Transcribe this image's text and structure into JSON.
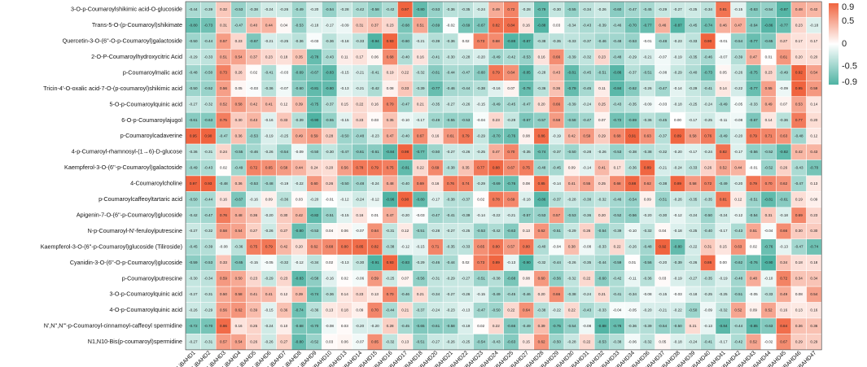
{
  "chart_data": {
    "type": "heatmap",
    "title": "",
    "xlabel": "",
    "ylabel": "",
    "colormap": {
      "low": "#4fb3a3",
      "mid": "#ffffff",
      "high": "#f0643f"
    },
    "zlim": [
      -0.9,
      0.9
    ],
    "colorbar_ticks": [
      "0.9",
      "0.5",
      "0",
      "-0.5",
      "-0.9"
    ],
    "columns": [
      "LjBAHD1",
      "LjBAHD2",
      "LjBAHD3",
      "LjBAHD4",
      "LjBAHD5",
      "LjBAHD6",
      "LjBAHD7",
      "LjBAHD8",
      "LjBAHD9",
      "LjBAHD10",
      "LjBAHD13",
      "LjBAHD14",
      "LjBAHD15",
      "LjBAHD16",
      "LjBAHD17",
      "LjBAHD18",
      "LjBAHD20",
      "LjBAHD21",
      "LjBAHD22",
      "LjBAHD23",
      "LjBAHD24",
      "LjBAHD25",
      "LjBAHD27",
      "LjBAHD28",
      "LjBAHD29",
      "LjBAHD30",
      "LjBAHD31",
      "LjBAHD32",
      "LjBAHD33",
      "LjBAHD34",
      "LjBAHD36",
      "LjBAHD37",
      "LjBAHD38",
      "LjBAHD39",
      "LjBAHD40",
      "LjBAHD41",
      "LjBAHD42",
      "LjBAHD43",
      "LjBAHD44",
      "LjBAHD45",
      "LjBAHD46",
      "LjBAHD47"
    ],
    "rows": [
      {
        "name": "3-O-p-Coumaroylshikimic acid-O-glucoside",
        "values": [
          -0.44,
          -0.39,
          0.32,
          -0.53,
          -0.38,
          -0.24,
          -0.26,
          -0.49,
          -0.2,
          -0.54,
          -0.28,
          -0.42,
          -0.58,
          -0.42,
          0.97,
          -0.8,
          -0.53,
          -0.36,
          -0.35,
          -0.24,
          0.49,
          0.72,
          -0.28,
          -0.79,
          -0.3,
          -0.55,
          -0.34,
          -0.26,
          -0.6,
          -0.47,
          -0.45,
          -0.29,
          -0.27,
          -0.25,
          -0.34,
          0.81,
          -0.15,
          -0.63,
          -0.54,
          -0.87,
          0.48,
          0.42
        ]
      },
      {
        "name": "Trans-5-O-(p-Coumaroyl)shikimate",
        "values": [
          -0.8,
          -0.73,
          0.31,
          -0.47,
          0.4,
          0.44,
          0.04,
          -0.53,
          -0.18,
          -0.17,
          -0.09,
          0.31,
          0.37,
          0.23,
          -0.68,
          0.51,
          -0.69,
          -0.02,
          -0.69,
          -0.67,
          0.82,
          0.84,
          0.16,
          -0.88,
          0.03,
          -0.34,
          -0.43,
          -0.39,
          -0.46,
          -0.7,
          -0.77,
          0.46,
          -0.87,
          -0.45,
          -0.74,
          0.46,
          0.47,
          -0.64,
          -0.86,
          -0.77,
          0.23,
          -0.18
        ]
      },
      {
        "name": "Quercetin-3-O-(6''-O-p-Coumaroyl)galactoside",
        "values": [
          -0.5,
          -0.44,
          0.57,
          0.23,
          -0.67,
          -0.21,
          -0.25,
          -0.36,
          -0.03,
          -0.36,
          -0.18,
          -0.33,
          -0.94,
          0.93,
          -0.6,
          -0.21,
          -0.39,
          -0.36,
          0.02,
          0.73,
          0.68,
          -0.88,
          -0.87,
          -0.38,
          -0.35,
          -0.33,
          -0.37,
          -0.46,
          -0.48,
          -0.53,
          -0.01,
          -0.48,
          -0.23,
          -0.33,
          0.9,
          -0.01,
          -0.54,
          -0.77,
          -0.65,
          0.27,
          0.17,
          0.17
        ]
      },
      {
        "name": "2-O-P-Coumaroylhydroxycitric Acid",
        "values": [
          -0.29,
          -0.33,
          0.51,
          0.54,
          0.37,
          0.23,
          0.18,
          0.35,
          -0.78,
          -0.43,
          0.11,
          0.17,
          0.06,
          0.68,
          -0.4,
          0.16,
          -0.41,
          -0.3,
          -0.28,
          -0.2,
          -0.49,
          -0.42,
          -0.53,
          0.16,
          0.66,
          -0.39,
          -0.32,
          0.23,
          -0.48,
          -0.29,
          -0.21,
          -0.07,
          -0.19,
          -0.35,
          -0.46,
          -0.07,
          -0.39,
          0.47,
          0.01,
          0.61,
          0.2,
          0.2
        ]
      },
      {
        "name": "p-Coumaroylmalic acid",
        "values": [
          -0.48,
          -0.5,
          0.73,
          0.26,
          0.02,
          -0.41,
          -0.03,
          -0.69,
          -0.67,
          -0.83,
          -0.15,
          -0.21,
          -0.41,
          0.19,
          0.22,
          -0.32,
          -0.61,
          -0.44,
          -0.47,
          -0.6,
          0.79,
          0.64,
          -0.85,
          -0.28,
          0.43,
          -0.81,
          -0.45,
          -0.51,
          -0.86,
          -0.37,
          -0.51,
          -0.08,
          -0.29,
          -0.4,
          -0.73,
          0.05,
          -0.26,
          -0.75,
          0.23,
          -0.49,
          0.92,
          0.54
        ]
      },
      {
        "name": "Tricin-4'-O-oxalic acid-7-O-(p-coumaroyl)shikimic acid",
        "values": [
          -0.5,
          -0.52,
          0.56,
          0.05,
          -0.03,
          -0.36,
          -0.07,
          -0.6,
          -0.81,
          -0.8,
          -0.13,
          -0.21,
          -0.42,
          0.08,
          0.33,
          -0.39,
          -0.77,
          -0.46,
          -0.44,
          -0.38,
          -0.16,
          0.07,
          -0.78,
          -0.36,
          0.36,
          -0.79,
          -0.45,
          0.11,
          -0.84,
          -0.62,
          -0.26,
          -0.47,
          -0.14,
          -0.29,
          -0.41,
          0.14,
          -0.22,
          -0.77,
          0.55,
          -0.09,
          0.95,
          0.59
        ]
      },
      {
        "name": "5-O-p-Coumaroylquinic acid",
        "values": [
          -0.27,
          -0.32,
          0.52,
          0.58,
          0.42,
          0.41,
          0.12,
          0.39,
          -0.75,
          -0.37,
          0.15,
          0.22,
          0.16,
          0.7,
          -0.47,
          0.21,
          -0.35,
          -0.27,
          -0.26,
          -0.15,
          -0.49,
          -0.45,
          -0.47,
          0.2,
          0.66,
          -0.39,
          -0.24,
          0.25,
          -0.43,
          -0.35,
          -0.09,
          -0.03,
          -0.18,
          -0.25,
          -0.24,
          -0.49,
          -0.05,
          -0.33,
          0.49,
          0.07,
          0.53,
          0.14
        ]
      },
      {
        "name": "6-O-p-Coumaroylajugol",
        "values": [
          -0.61,
          -0.63,
          0.75,
          0.3,
          0.43,
          -0.16,
          0.33,
          -0.39,
          -0.9,
          -0.55,
          -0.15,
          0.23,
          0.03,
          0.35,
          -0.1,
          -0.17,
          -0.49,
          -0.55,
          -0.53,
          -0.04,
          0.23,
          -0.29,
          -0.67,
          -0.57,
          0.58,
          -0.58,
          -0.47,
          0.07,
          -0.72,
          -0.69,
          -0.36,
          -0.45,
          0.0,
          -0.17,
          -0.25,
          -0.11,
          -0.08,
          -0.67,
          0.14,
          -0.36,
          0.77,
          0.2
        ]
      },
      {
        "name": "p-Coumaroylcadaverine",
        "values": [
          0.95,
          0.9,
          -0.47,
          0.36,
          -0.53,
          -0.19,
          -0.25,
          0.49,
          0.59,
          0.28,
          -0.5,
          -0.48,
          -0.23,
          0.47,
          -0.4,
          0.67,
          0.16,
          0.61,
          0.79,
          -0.29,
          -0.7,
          -0.76,
          0.08,
          0.86,
          -0.19,
          0.42,
          0.59,
          0.29,
          0.68,
          0.91,
          0.63,
          -0.37,
          0.89,
          0.58,
          0.76,
          -0.49,
          -0.2,
          0.79,
          0.71,
          0.63,
          -0.48,
          0.12
        ]
      },
      {
        "name": "4-p-Cumaroyl-rhamnosyl-(1→6)-D-glucose",
        "values": [
          -0.36,
          -0.31,
          0.24,
          -0.55,
          -0.46,
          -0.26,
          -0.54,
          -0.09,
          -0.5,
          -0.3,
          -0.47,
          -0.61,
          -0.61,
          -0.84,
          0.98,
          -0.77,
          -0.5,
          -0.27,
          -0.26,
          -0.25,
          0.47,
          0.7,
          -0.35,
          -0.74,
          -0.37,
          -0.5,
          -0.28,
          -0.26,
          -0.53,
          -0.38,
          -0.38,
          -0.32,
          -0.2,
          -0.17,
          -0.24,
          0.82,
          -0.17,
          -0.56,
          -0.52,
          -0.82,
          0.42,
          0.43
        ]
      },
      {
        "name": "Kaempferol-3-O-(6''-p-Coumaroyl)galactoside",
        "values": [
          -0.49,
          -0.43,
          0.02,
          -0.49,
          0.72,
          0.65,
          0.58,
          0.44,
          0.24,
          0.2,
          0.56,
          0.78,
          0.79,
          0.75,
          -0.81,
          0.22,
          0.69,
          -0.38,
          0.35,
          0.77,
          0.88,
          0.67,
          0.75,
          -0.48,
          -0.45,
          0.09,
          -0.14,
          0.41,
          0.17,
          -0.36,
          0.89,
          -0.21,
          -0.24,
          -0.33,
          0.26,
          0.52,
          0.44,
          -0.01,
          -0.52,
          0.26,
          -0.43,
          -0.7
        ]
      },
      {
        "name": "4-Coumaroylcholine",
        "values": [
          0.97,
          0.93,
          -0.48,
          0.36,
          -0.53,
          -0.48,
          -0.19,
          -0.22,
          0.6,
          0.26,
          -0.5,
          -0.48,
          -0.24,
          0.48,
          -0.4,
          0.69,
          0.16,
          0.76,
          0.74,
          -0.29,
          -0.69,
          -0.76,
          0.08,
          0.85,
          -0.14,
          0.41,
          0.55,
          0.25,
          0.68,
          0.88,
          0.62,
          -0.38,
          0.89,
          0.58,
          0.72,
          -0.49,
          -0.2,
          0.79,
          0.7,
          0.62,
          -0.47,
          0.13
        ]
      },
      {
        "name": "p-Coumaroylcaffeoyltartaric acid",
        "values": [
          -0.5,
          -0.44,
          0.16,
          -0.67,
          -0.16,
          0.09,
          -0.36,
          0.03,
          -0.2,
          -0.01,
          -0.12,
          -0.24,
          -0.12,
          -0.96,
          0.9,
          -0.8,
          -0.17,
          -0.38,
          -0.37,
          0.02,
          0.78,
          0.69,
          -0.18,
          -0.86,
          -0.37,
          -0.28,
          -0.38,
          -0.32,
          -0.46,
          -0.54,
          0.09,
          -0.51,
          -0.26,
          -0.35,
          -0.35,
          0.81,
          0.12,
          -0.51,
          -0.81,
          -0.61,
          0.19,
          0.09
        ]
      },
      {
        "name": "Apigenin-7-O-(6''-p-Coumaroyl)glucoside",
        "values": [
          -0.42,
          -0.47,
          0.76,
          0.48,
          0.36,
          -0.2,
          0.3,
          0.42,
          -0.82,
          -0.51,
          -0.15,
          0.16,
          0.01,
          0.47,
          -0.2,
          -0.03,
          -0.47,
          -0.41,
          -0.39,
          -0.14,
          -0.22,
          -0.21,
          -0.57,
          -0.53,
          0.57,
          -0.53,
          -0.36,
          0.2,
          -0.52,
          -0.56,
          -0.2,
          -0.3,
          -0.12,
          -0.24,
          -0.5,
          -0.24,
          -0.12,
          -0.54,
          0.31,
          -0.18,
          0.69,
          0.23
        ]
      },
      {
        "name": "N-p-Coumaroyl-N'-feruloylputrescine",
        "values": [
          -0.27,
          -0.32,
          0.58,
          0.54,
          0.27,
          -0.26,
          0.27,
          -0.8,
          -0.53,
          0.04,
          0.06,
          -0.07,
          0.64,
          -0.31,
          0.12,
          -0.51,
          -0.28,
          -0.27,
          -0.25,
          -0.53,
          -0.42,
          -0.63,
          0.13,
          0.62,
          -0.51,
          -0.29,
          0.26,
          -0.54,
          -0.39,
          -0.1,
          -0.32,
          0.04,
          -0.18,
          -0.25,
          -0.4,
          -0.17,
          -0.43,
          0.51,
          -0.04,
          0.66,
          0.3,
          0.3
        ]
      },
      {
        "name": "Kaempferol-3-O-(6''-p-Coumaroyl)glucoside (Tiliroside)",
        "values": [
          -0.45,
          -0.39,
          -0.08,
          -0.36,
          0.75,
          0.79,
          0.42,
          0.2,
          0.62,
          0.68,
          0.8,
          0.85,
          0.82,
          -0.38,
          -0.12,
          -0.15,
          0.71,
          -0.35,
          -0.33,
          0.65,
          0.8,
          0.57,
          0.8,
          -0.4,
          -0.04,
          0.38,
          -0.08,
          -0.33,
          0.22,
          -0.26,
          -0.48,
          0.92,
          -0.8,
          -0.22,
          0.31,
          0.15,
          0.63,
          0.02,
          -0.76,
          -0.13,
          -0.47,
          -0.74
        ]
      },
      {
        "name": "Cyanidin-3-O-(6''-O-p-Coumaroyl)glucoside",
        "values": [
          -0.59,
          -0.53,
          0.33,
          -0.65,
          -0.15,
          -0.05,
          -0.32,
          -0.12,
          -0.34,
          0.02,
          -0.13,
          -0.3,
          -0.91,
          0.93,
          -0.83,
          -0.29,
          -0.46,
          -0.44,
          0.02,
          0.73,
          0.89,
          -0.13,
          -0.9,
          -0.32,
          -0.44,
          -0.26,
          -0.35,
          -0.44,
          -0.59,
          0.01,
          -0.56,
          -0.2,
          -0.39,
          -0.26,
          0.86,
          0.0,
          -0.62,
          -0.76,
          -0.9,
          0.34,
          0.18,
          0.18
        ]
      },
      {
        "name": "p-Coumaroylputrescine",
        "values": [
          -0.3,
          -0.34,
          0.59,
          0.5,
          0.23,
          -0.29,
          0.23,
          -0.83,
          -0.58,
          -0.16,
          0.02,
          -0.06,
          0.59,
          -0.25,
          0.07,
          -0.56,
          -0.31,
          -0.29,
          -0.27,
          -0.51,
          -0.38,
          -0.68,
          0.08,
          0.6,
          -0.56,
          -0.32,
          0.22,
          -0.6,
          -0.42,
          -0.11,
          -0.36,
          0.03,
          -0.19,
          -0.27,
          -0.35,
          -0.19,
          -0.48,
          0.48,
          -0.1,
          0.72,
          0.34,
          0.34
        ]
      },
      {
        "name": "3-O-p-Coumaroylquinic acid",
        "values": [
          -0.27,
          -0.31,
          0.5,
          0.58,
          0.41,
          0.41,
          0.12,
          0.39,
          -0.74,
          -0.36,
          0.14,
          0.23,
          0.13,
          0.7,
          -0.46,
          0.21,
          -0.34,
          -0.27,
          -0.26,
          -0.15,
          -0.49,
          -0.45,
          -0.46,
          0.2,
          0.66,
          -0.38,
          -0.24,
          0.21,
          -0.41,
          -0.34,
          -0.08,
          -0.15,
          -0.03,
          -0.18,
          -0.25,
          -0.25,
          -0.51,
          -0.05,
          -0.33,
          0.49,
          0.08,
          0.54
        ]
      },
      {
        "name": "4-O-p-Coumaroylquinic acid",
        "values": [
          -0.26,
          -0.29,
          0.56,
          0.62,
          0.39,
          -0.15,
          0.36,
          -0.74,
          -0.36,
          0.13,
          0.18,
          0.09,
          0.7,
          -0.44,
          0.21,
          -0.37,
          -0.24,
          -0.23,
          -0.13,
          -0.47,
          -0.5,
          0.22,
          0.64,
          -0.38,
          -0.22,
          0.22,
          -0.43,
          -0.33,
          -0.04,
          -0.05,
          -0.2,
          -0.21,
          -0.22,
          -0.5,
          -0.09,
          -0.32,
          0.52,
          0.09,
          0.52,
          0.16,
          0.13,
          0.16
        ]
      },
      {
        "name": "N',N'',N'''-p-Coumaroyl-cinnamoyl-caffeoyl spermidine",
        "values": [
          -0.72,
          -0.7,
          0.86,
          0.16,
          0.25,
          -0.24,
          0.1,
          -0.68,
          -0.7,
          -0.08,
          0.03,
          -0.2,
          -0.2,
          0.28,
          -0.45,
          -0.65,
          -0.61,
          -0.58,
          -0.19,
          0.02,
          0.22,
          -0.66,
          -0.49,
          0.39,
          -0.75,
          -0.54,
          -0.08,
          -0.88,
          -0.78,
          -0.36,
          -0.39,
          -0.54,
          -0.5,
          0.21,
          -0.13,
          -0.84,
          -0.44,
          -0.85,
          -0.63,
          0.84,
          0.36,
          0.36
        ]
      },
      {
        "name": "N1,N10-Bis(p-coumaroyl)spermidine",
        "values": [
          -0.27,
          -0.31,
          0.57,
          0.54,
          0.26,
          -0.26,
          0.27,
          -0.8,
          -0.52,
          0.03,
          0.06,
          -0.07,
          0.65,
          -0.32,
          0.13,
          -0.51,
          -0.27,
          -0.26,
          -0.25,
          -0.54,
          -0.43,
          -0.63,
          0.15,
          0.62,
          -0.5,
          -0.28,
          0.22,
          -0.53,
          -0.38,
          -0.06,
          -0.32,
          0.05,
          -0.18,
          -0.24,
          -0.41,
          -0.17,
          -0.42,
          0.52,
          -0.02,
          0.67,
          0.29,
          0.29
        ]
      }
    ]
  }
}
